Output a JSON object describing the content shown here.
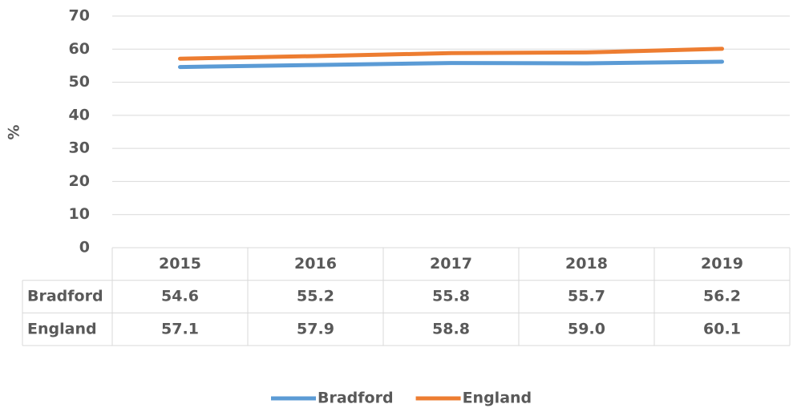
{
  "chart_data": {
    "type": "line",
    "ylabel": "%",
    "categories": [
      "2015",
      "2016",
      "2017",
      "2018",
      "2019"
    ],
    "series": [
      {
        "name": "Bradford",
        "color": "#5b9bd5",
        "values": [
          54.6,
          55.2,
          55.8,
          55.7,
          56.2
        ],
        "value_labels": [
          "54.6",
          "55.2",
          "55.8",
          "55.7",
          "56.2"
        ]
      },
      {
        "name": "England",
        "color": "#ed7d31",
        "values": [
          57.1,
          57.9,
          58.8,
          59.0,
          60.1
        ],
        "value_labels": [
          "57.1",
          "57.9",
          "58.8",
          "59.0",
          "60.1"
        ]
      }
    ],
    "ylim": [
      0,
      70
    ],
    "yticks": [
      0,
      10,
      20,
      30,
      40,
      50,
      60,
      70
    ],
    "grid": true
  }
}
